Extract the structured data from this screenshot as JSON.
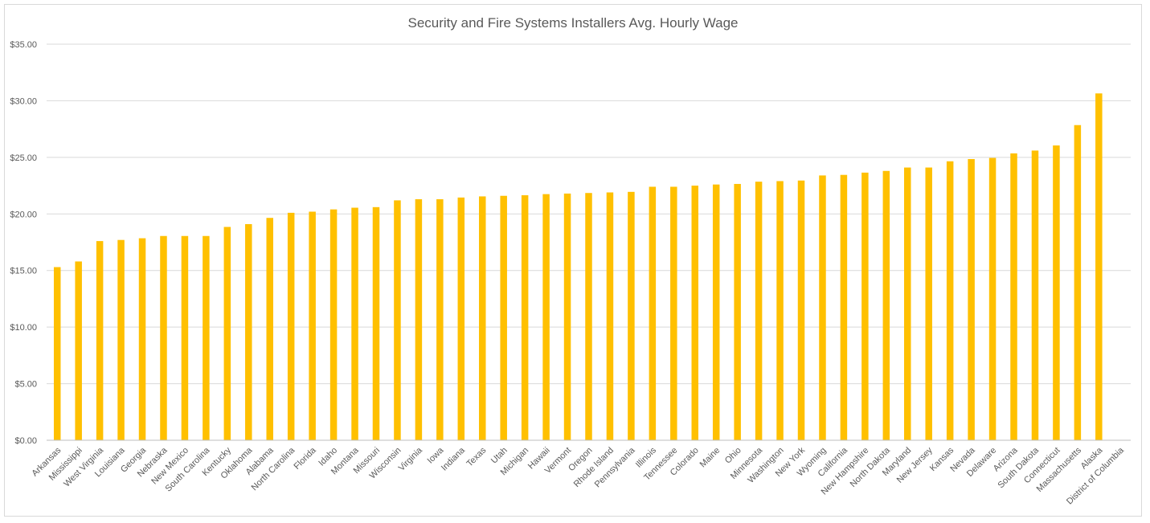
{
  "chart_data": {
    "type": "bar",
    "title": "Security and Fire Systems Installers Avg. Hourly Wage",
    "xlabel": "",
    "ylabel": "",
    "ylim": [
      0,
      35
    ],
    "yticks": [
      "$0.00",
      "$5.00",
      "$10.00",
      "$15.00",
      "$20.00",
      "$25.00",
      "$30.00",
      "$35.00"
    ],
    "grid": true,
    "legend": "none",
    "bar_color": "#FFC000",
    "categories": [
      "Arkansas",
      "Mississippi",
      "West Virginia",
      "Louisiana",
      "Georgia",
      "Nebraska",
      "New Mexico",
      "South Carolina",
      "Kentucky",
      "Oklahoma",
      "Alabama",
      "North Carolina",
      "Florida",
      "Idaho",
      "Montana",
      "Missouri",
      "Wisconsin",
      "Virginia",
      "Iowa",
      "Indiana",
      "Texas",
      "Utah",
      "Michigan",
      "Hawaii",
      "Vermont",
      "Oregon",
      "Rhode Island",
      "Pennsylvania",
      "Illinois",
      "Tennessee",
      "Colorado",
      "Maine",
      "Ohio",
      "Minnesota",
      "Washington",
      "New York",
      "Wyoming",
      "California",
      "New Hampshire",
      "North Dakota",
      "Maryland",
      "New Jersey",
      "Kansas",
      "Nevada",
      "Delaware",
      "Arizona",
      "South Dakota",
      "Connecticut",
      "Massachusetts",
      "Alaska",
      "District of Columbia"
    ],
    "values": [
      15.3,
      15.8,
      17.6,
      17.7,
      17.85,
      18.05,
      18.05,
      18.05,
      18.85,
      19.1,
      19.65,
      20.1,
      20.2,
      20.4,
      20.55,
      20.6,
      21.2,
      21.3,
      21.3,
      21.45,
      21.55,
      21.6,
      21.65,
      21.75,
      21.8,
      21.85,
      21.9,
      21.95,
      22.4,
      22.4,
      22.5,
      22.6,
      22.65,
      22.85,
      22.9,
      22.95,
      23.4,
      23.45,
      23.65,
      23.8,
      24.1,
      24.1,
      24.65,
      24.85,
      24.95,
      25.35,
      25.6,
      26.05,
      27.85,
      30.65,
      0
    ]
  }
}
